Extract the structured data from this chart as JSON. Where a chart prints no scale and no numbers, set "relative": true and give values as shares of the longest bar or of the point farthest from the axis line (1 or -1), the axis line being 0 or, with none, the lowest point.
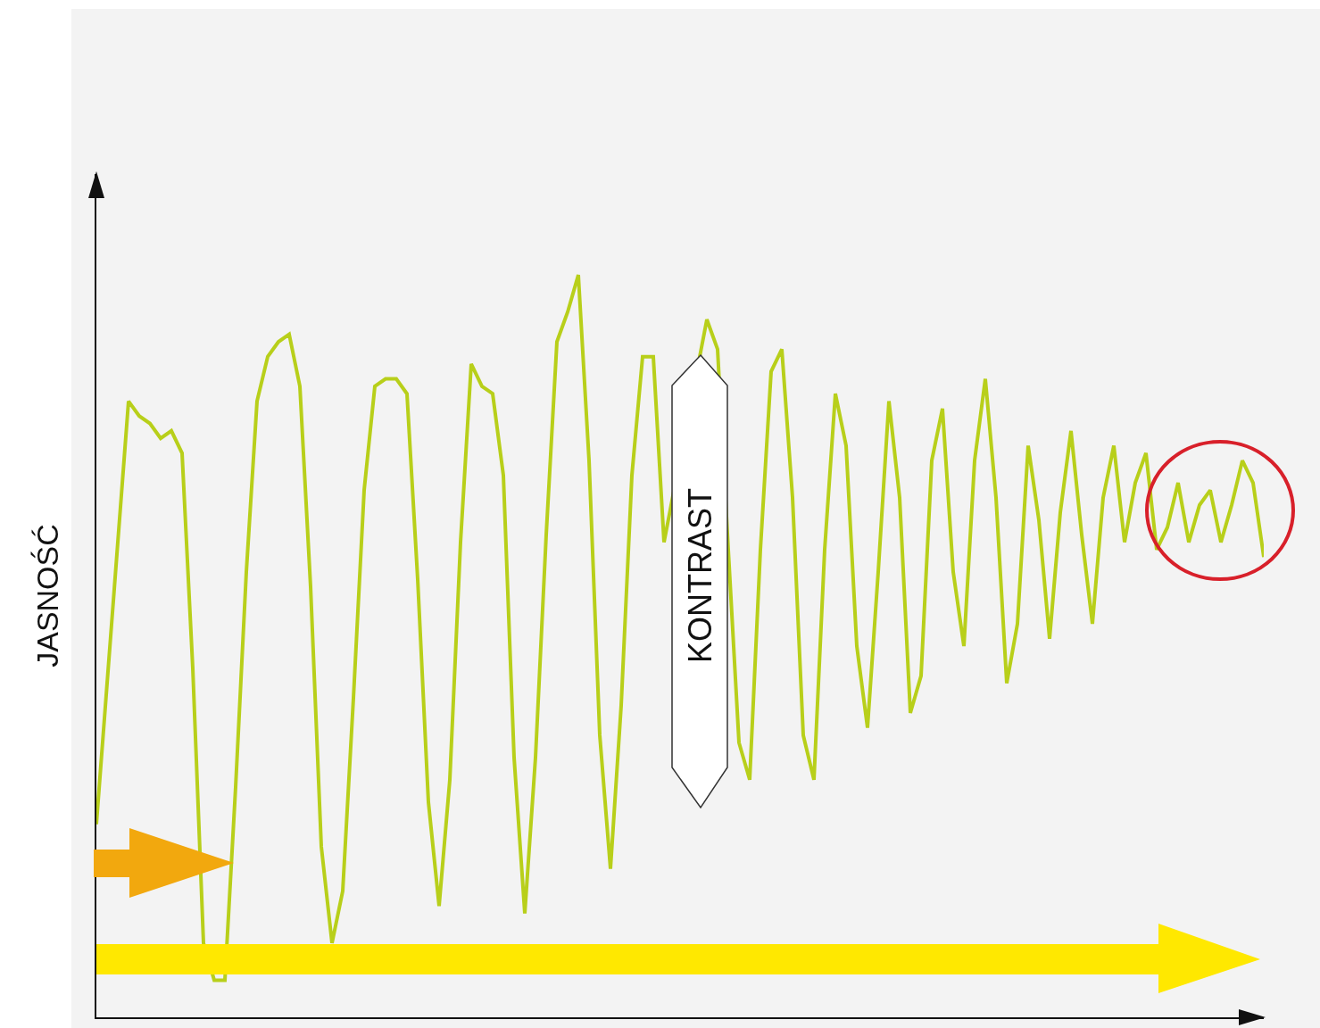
{
  "chart_data": {
    "type": "line",
    "relative": true,
    "ylabel": "JASNOŚĆ",
    "annotations": [
      "KONTRAST"
    ],
    "categories": [
      null,
      null,
      null,
      null,
      null,
      null,
      null,
      null,
      null,
      null,
      null,
      null,
      null,
      null,
      null,
      null,
      null,
      null,
      null,
      null,
      null,
      null,
      null,
      null,
      null,
      null,
      null,
      null,
      null,
      null,
      null,
      null,
      null,
      null,
      null,
      null,
      null,
      null,
      null,
      null,
      null,
      null,
      null,
      null,
      null,
      null,
      null,
      null,
      null,
      null,
      null,
      null,
      null,
      null,
      null,
      null,
      null,
      null,
      null,
      null,
      null,
      null,
      null,
      null,
      null,
      null,
      null,
      null,
      null,
      null,
      null,
      null,
      null,
      null,
      null,
      null,
      null,
      null,
      null,
      null,
      null,
      null,
      null,
      null,
      null,
      null,
      null,
      null,
      null,
      null,
      null,
      null,
      null,
      null,
      null,
      null,
      null,
      null,
      null,
      null,
      null,
      null,
      null,
      null,
      null,
      null,
      null,
      null,
      null,
      null
    ],
    "series": [
      {
        "color": "#b8cf1a",
        "values": [
          0.26,
          0.45,
          0.64,
          0.83,
          0.81,
          0.8,
          0.78,
          0.79,
          0.76,
          0.47,
          0.1,
          0.05,
          0.05,
          0.31,
          0.6,
          0.83,
          0.89,
          0.91,
          0.92,
          0.85,
          0.58,
          0.23,
          0.1,
          0.17,
          0.43,
          0.71,
          0.85,
          0.86,
          0.86,
          0.84,
          0.59,
          0.29,
          0.15,
          0.32,
          0.64,
          0.88,
          0.85,
          0.84,
          0.73,
          0.35,
          0.14,
          0.35,
          0.65,
          0.91,
          0.95,
          1.0,
          0.75,
          0.38,
          0.2,
          0.42,
          0.73,
          0.89,
          0.89,
          0.64,
          null,
          null,
          null,
          0.94,
          0.9,
          0.63,
          0.37,
          0.32,
          0.63,
          0.87,
          0.9,
          0.7,
          0.38,
          0.32,
          0.63,
          0.84,
          0.77,
          0.5,
          0.39,
          0.6,
          0.83,
          0.7,
          0.41,
          0.46,
          0.75,
          0.82,
          0.6,
          0.5,
          0.75,
          0.86,
          0.7,
          0.45,
          0.53,
          0.77,
          0.67,
          0.51,
          0.68,
          0.79,
          0.65,
          0.53,
          0.7,
          0.77,
          0.64,
          0.72,
          0.76,
          0.63,
          0.66,
          0.72,
          0.64,
          0.69,
          0.71,
          0.64,
          0.69,
          0.75,
          0.72,
          0.62
        ]
      }
    ]
  }
}
